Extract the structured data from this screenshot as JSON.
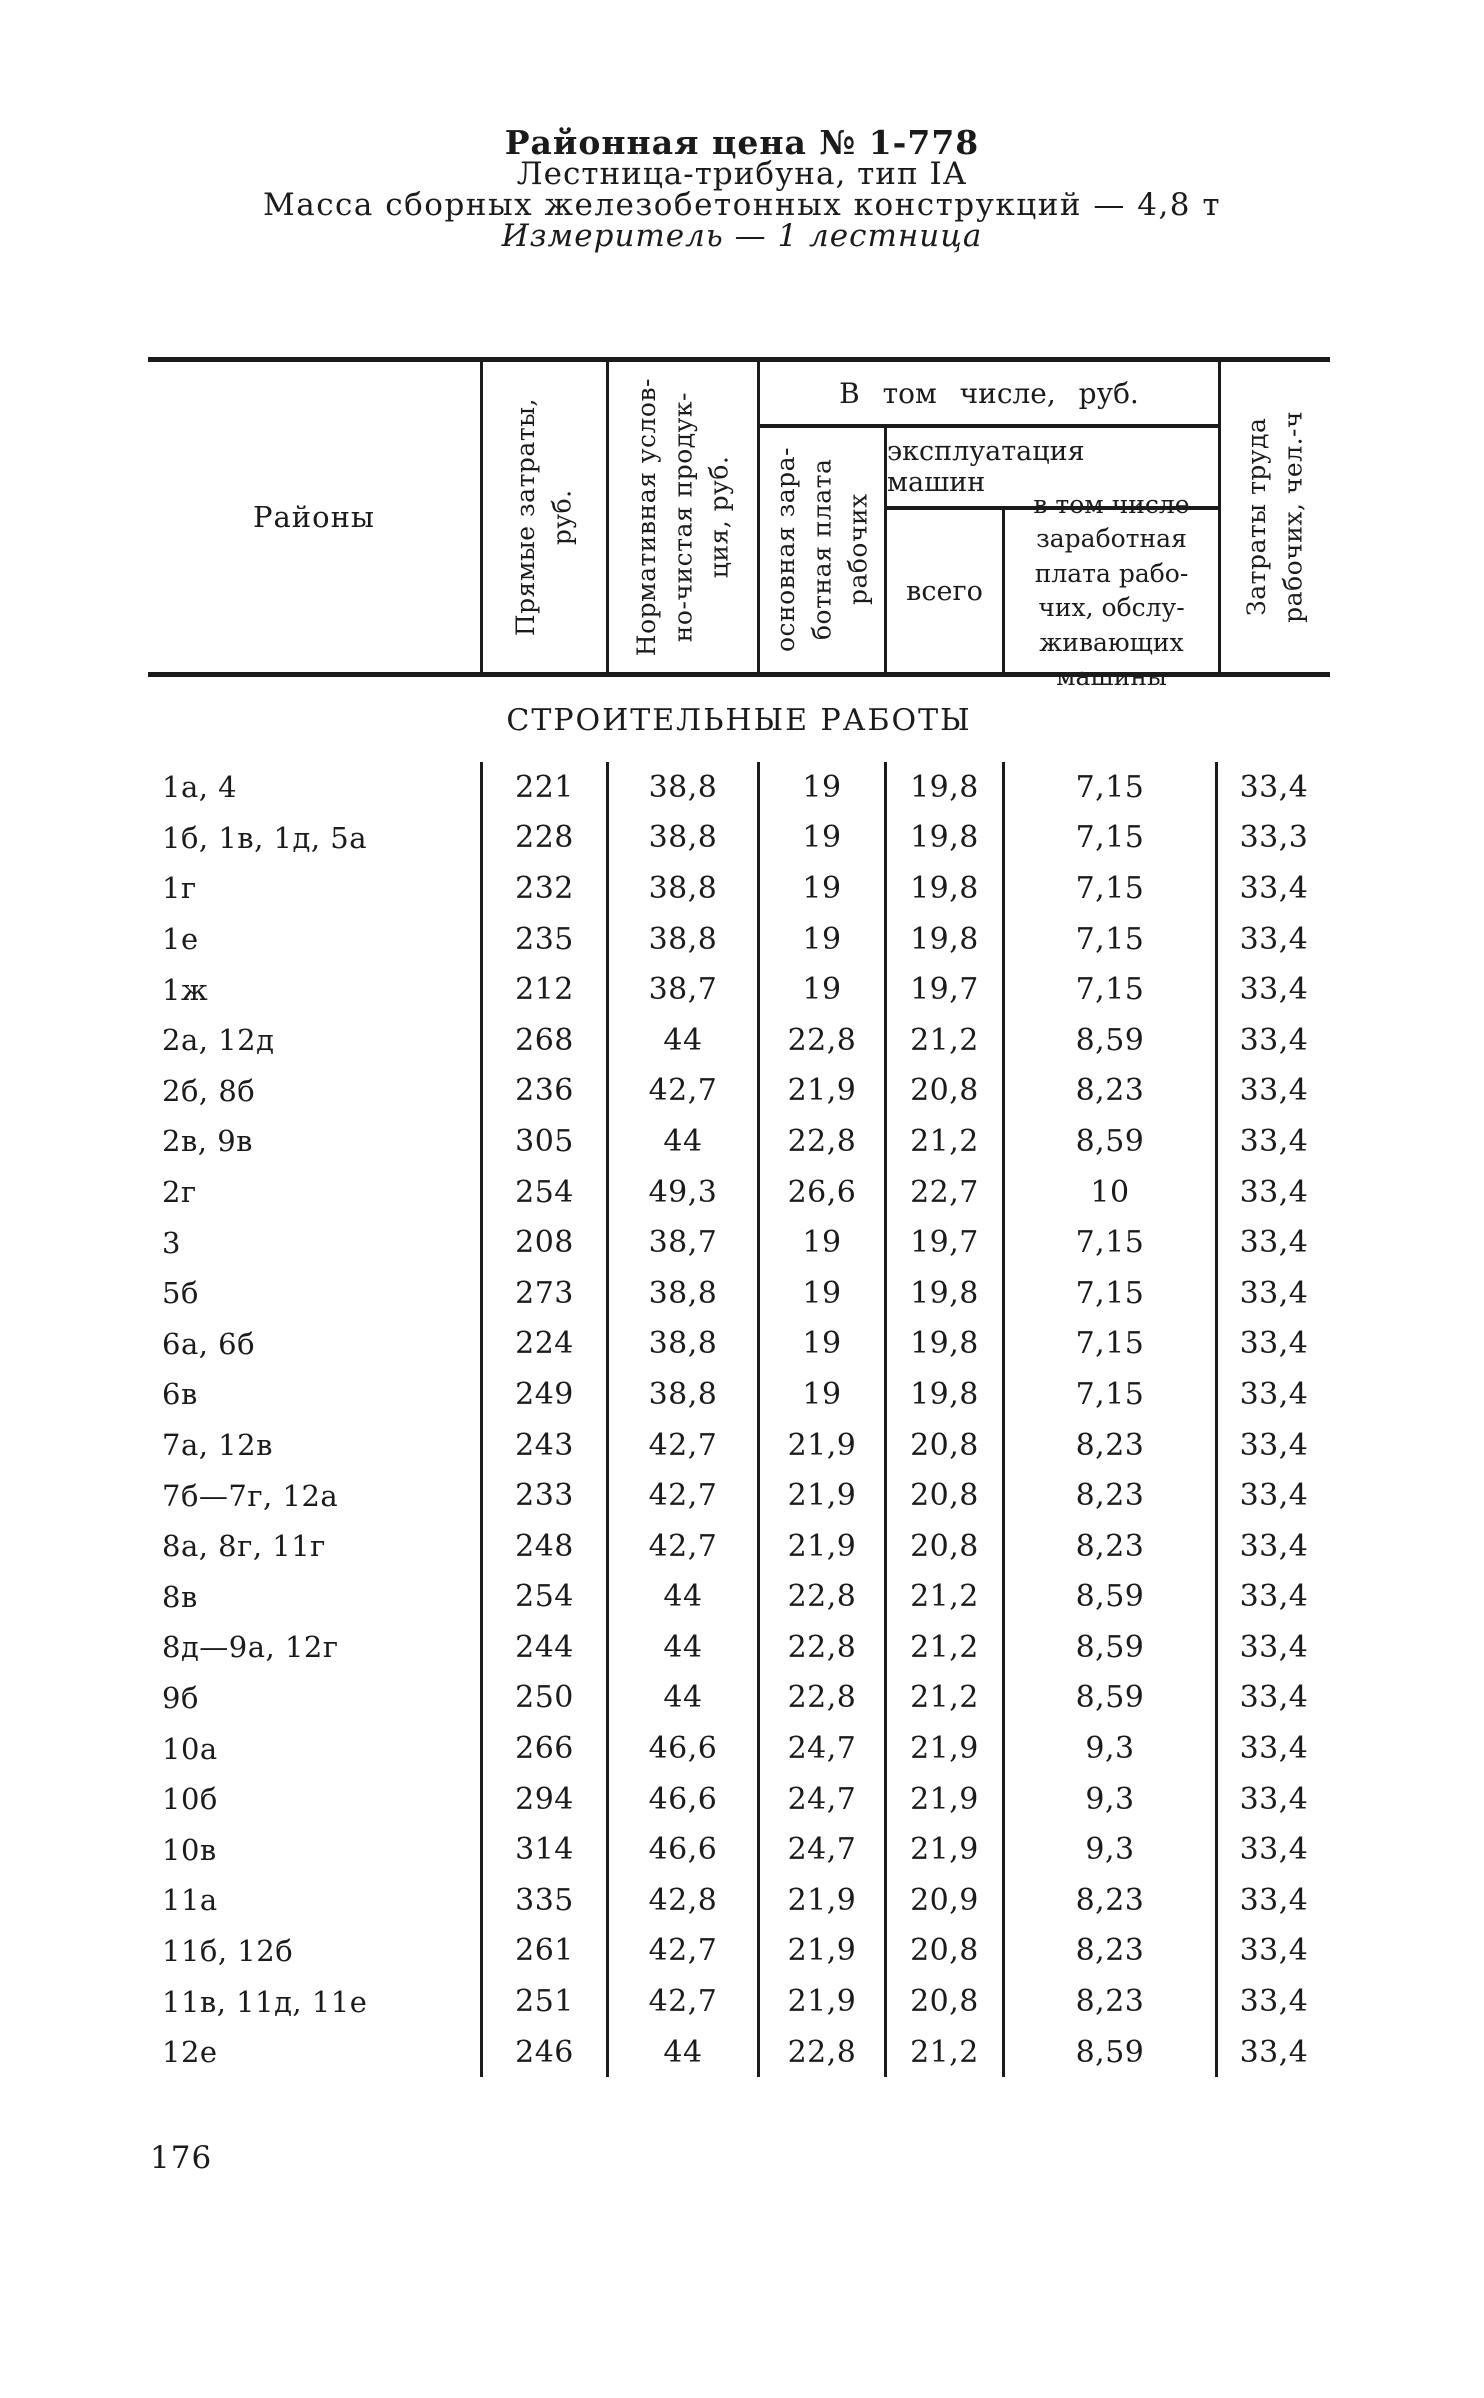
{
  "page": {
    "title": "Районная цена № 1-778",
    "subtitle_type": "Лестница-трибуна, тип IА",
    "subtitle_mass": "Масса сборных железобетонных конструкций — 4,8 т",
    "subtitle_measure": "Измеритель — 1 лестница",
    "page_number": "176"
  },
  "table": {
    "col_headers": {
      "regions": "Районы",
      "direct_costs": "Прямые затраты,\nруб.",
      "normative": "Нормативная услов-\nно-чистая продук-\nция, руб.",
      "including_rub": "В том числе, руб.",
      "basic_wage": "основная зара-\nботная плата\nрабочих",
      "machine_operation": "эксплуатация машин",
      "total": "всего",
      "including_machine_wage": "в том числе\nзаработная\nплата рабо-\nчих, обслу-\nживающих\nмашины",
      "labor_costs": "Затраты труда\nрабочих, чел.-ч"
    },
    "section_title": "СТРОИТЕЛЬНЫЕ РАБОТЫ",
    "rows": [
      {
        "region": "1а, 4",
        "values": [
          "221",
          "38,8",
          "19",
          "19,8",
          "7,15",
          "33,4"
        ]
      },
      {
        "region": "1б, 1в, 1д, 5а",
        "values": [
          "228",
          "38,8",
          "19",
          "19,8",
          "7,15",
          "33,3"
        ]
      },
      {
        "region": "1г",
        "values": [
          "232",
          "38,8",
          "19",
          "19,8",
          "7,15",
          "33,4"
        ]
      },
      {
        "region": "1е",
        "values": [
          "235",
          "38,8",
          "19",
          "19,8",
          "7,15",
          "33,4"
        ]
      },
      {
        "region": "1ж",
        "values": [
          "212",
          "38,7",
          "19",
          "19,7",
          "7,15",
          "33,4"
        ]
      },
      {
        "region": "2а, 12д",
        "values": [
          "268",
          "44",
          "22,8",
          "21,2",
          "8,59",
          "33,4"
        ]
      },
      {
        "region": "2б, 8б",
        "values": [
          "236",
          "42,7",
          "21,9",
          "20,8",
          "8,23",
          "33,4"
        ]
      },
      {
        "region": "2в, 9в",
        "values": [
          "305",
          "44",
          "22,8",
          "21,2",
          "8,59",
          "33,4"
        ]
      },
      {
        "region": "2г",
        "values": [
          "254",
          "49,3",
          "26,6",
          "22,7",
          "10",
          "33,4"
        ]
      },
      {
        "region": "3",
        "values": [
          "208",
          "38,7",
          "19",
          "19,7",
          "7,15",
          "33,4"
        ]
      },
      {
        "region": "5б",
        "values": [
          "273",
          "38,8",
          "19",
          "19,8",
          "7,15",
          "33,4"
        ]
      },
      {
        "region": "6а, 6б",
        "values": [
          "224",
          "38,8",
          "19",
          "19,8",
          "7,15",
          "33,4"
        ]
      },
      {
        "region": "6в",
        "values": [
          "249",
          "38,8",
          "19",
          "19,8",
          "7,15",
          "33,4"
        ]
      },
      {
        "region": "7а, 12в",
        "values": [
          "243",
          "42,7",
          "21,9",
          "20,8",
          "8,23",
          "33,4"
        ]
      },
      {
        "region": "7б—7г, 12а",
        "values": [
          "233",
          "42,7",
          "21,9",
          "20,8",
          "8,23",
          "33,4"
        ]
      },
      {
        "region": "8а, 8г, 11г",
        "values": [
          "248",
          "42,7",
          "21,9",
          "20,8",
          "8,23",
          "33,4"
        ]
      },
      {
        "region": "8в",
        "values": [
          "254",
          "44",
          "22,8",
          "21,2",
          "8,59",
          "33,4"
        ]
      },
      {
        "region": "8д—9а, 12г",
        "values": [
          "244",
          "44",
          "22,8",
          "21,2",
          "8,59",
          "33,4"
        ]
      },
      {
        "region": "9б",
        "values": [
          "250",
          "44",
          "22,8",
          "21,2",
          "8,59",
          "33,4"
        ]
      },
      {
        "region": "10а",
        "values": [
          "266",
          "46,6",
          "24,7",
          "21,9",
          "9,3",
          "33,4"
        ]
      },
      {
        "region": "10б",
        "values": [
          "294",
          "46,6",
          "24,7",
          "21,9",
          "9,3",
          "33,4"
        ]
      },
      {
        "region": "10в",
        "values": [
          "314",
          "46,6",
          "24,7",
          "21,9",
          "9,3",
          "33,4"
        ]
      },
      {
        "region": "11а",
        "values": [
          "335",
          "42,8",
          "21,9",
          "20,9",
          "8,23",
          "33,4"
        ]
      },
      {
        "region": "11б, 12б",
        "values": [
          "261",
          "42,7",
          "21,9",
          "20,8",
          "8,23",
          "33,4"
        ]
      },
      {
        "region": "11в, 11д, 11е",
        "values": [
          "251",
          "42,7",
          "21,9",
          "20,8",
          "8,23",
          "33,4"
        ]
      },
      {
        "region": "12е",
        "values": [
          "246",
          "44",
          "22,8",
          "21,2",
          "8,59",
          "33,4"
        ]
      }
    ]
  }
}
